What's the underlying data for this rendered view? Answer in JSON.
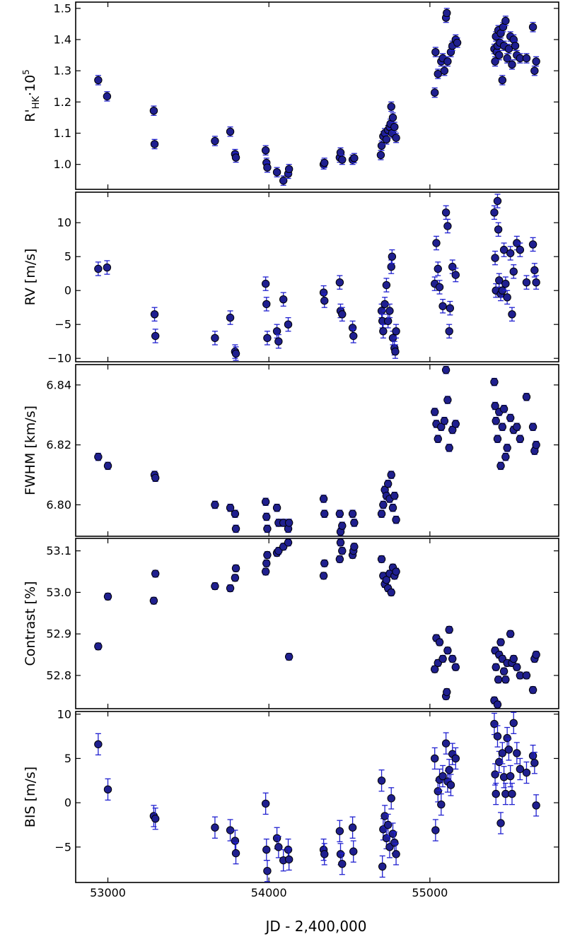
{
  "chart_data": {
    "type": "scatter",
    "layout": "vertically stacked panels sharing the x axis",
    "xlabel": "JD - 2,400,000",
    "xlim": [
      52800,
      55800
    ],
    "xticks": [
      53000,
      54000,
      55000
    ],
    "xtick_labels": [
      "53000",
      "54000",
      "55000"
    ],
    "marker_color": "#1f1f8f",
    "errorbar_color": "#2020d0",
    "grid": false,
    "legend": "none",
    "panels": [
      {
        "id": "rhk",
        "ylabel_main": "R'",
        "ylabel_sub": "HK",
        "ylabel_mid": "·10",
        "ylabel_sup": "5",
        "ylim": [
          0.92,
          1.52
        ],
        "yticks": [
          "1.0",
          "1.1",
          "1.2",
          "1.3",
          "1.4",
          "1.5"
        ],
        "err": 0.015,
        "x": [
          52940,
          52995,
          53285,
          53290,
          53665,
          53760,
          53790,
          53795,
          53980,
          53985,
          53990,
          54050,
          54090,
          54120,
          54125,
          54340,
          54345,
          54440,
          54445,
          54455,
          54520,
          54530,
          54695,
          54700,
          54710,
          54720,
          54730,
          54740,
          54750,
          54755,
          54760,
          54765,
          54770,
          54780,
          54790,
          55030,
          55035,
          55050,
          55070,
          55080,
          55090,
          55100,
          55105,
          55110,
          55130,
          55140,
          55160,
          55170,
          55400,
          55405,
          55410,
          55415,
          55420,
          55425,
          55430,
          55435,
          55440,
          55450,
          55455,
          55460,
          55470,
          55480,
          55490,
          55500,
          55510,
          55520,
          55530,
          55540,
          55560,
          55600,
          55640,
          55650,
          55660
        ],
        "y": [
          1.27,
          1.218,
          1.172,
          1.065,
          1.075,
          1.105,
          1.033,
          1.022,
          1.045,
          1.005,
          0.99,
          0.975,
          0.948,
          0.97,
          0.985,
          1.0,
          1.005,
          1.022,
          1.038,
          1.015,
          1.015,
          1.02,
          1.03,
          1.06,
          1.09,
          1.1,
          1.08,
          1.11,
          1.12,
          1.13,
          1.185,
          1.1,
          1.15,
          1.12,
          1.085,
          1.23,
          1.36,
          1.29,
          1.33,
          1.34,
          1.3,
          1.47,
          1.485,
          1.33,
          1.36,
          1.38,
          1.4,
          1.39,
          1.37,
          1.33,
          1.41,
          1.36,
          1.38,
          1.43,
          1.35,
          1.39,
          1.42,
          1.27,
          1.44,
          1.38,
          1.46,
          1.34,
          1.37,
          1.41,
          1.32,
          1.4,
          1.38,
          1.35,
          1.34,
          1.34,
          1.44,
          1.3,
          1.33
        ]
      },
      {
        "id": "rv",
        "ylabel": "RV [m/s]",
        "ylim": [
          -10.5,
          14.5
        ],
        "yticks": [
          "−10",
          "−5",
          "0",
          "5",
          "10"
        ],
        "ytick_values": [
          -10,
          -5,
          0,
          5,
          10
        ],
        "err": 1.0,
        "x": [
          52940,
          52995,
          53290,
          53295,
          53665,
          53760,
          53790,
          53795,
          53980,
          53985,
          53990,
          54050,
          54060,
          54090,
          54120,
          54340,
          54345,
          54440,
          54445,
          54455,
          54520,
          54525,
          54700,
          54705,
          54710,
          54720,
          54730,
          54740,
          54750,
          54760,
          54765,
          54770,
          54780,
          54785,
          54790,
          55030,
          55040,
          55050,
          55060,
          55080,
          55100,
          55110,
          55120,
          55125,
          55140,
          55160,
          55400,
          55405,
          55410,
          55420,
          55425,
          55430,
          55440,
          55450,
          55460,
          55470,
          55480,
          55500,
          55510,
          55520,
          55540,
          55560,
          55600,
          55640,
          55650,
          55660
        ],
        "y": [
          3.2,
          3.4,
          -3.5,
          -6.7,
          -7.0,
          -4.0,
          -9.0,
          -9.3,
          1.0,
          -2.0,
          -7.0,
          -6.0,
          -7.5,
          -1.3,
          -5.0,
          -0.3,
          -1.5,
          1.2,
          -3.0,
          -3.5,
          -5.5,
          -6.7,
          -3.0,
          -4.5,
          -6.0,
          -2.0,
          0.8,
          -4.5,
          -3.0,
          3.5,
          5.0,
          -7.0,
          -8.5,
          -9.0,
          -6.0,
          1.0,
          7.0,
          3.2,
          0.5,
          -2.3,
          11.5,
          9.5,
          -6.0,
          -2.6,
          3.5,
          2.3,
          11.5,
          4.8,
          0.0,
          13.2,
          9.0,
          1.5,
          -0.5,
          0.0,
          6.0,
          1.0,
          -1.0,
          5.5,
          -3.5,
          2.8,
          7.0,
          6.0,
          1.2,
          6.8,
          3.0,
          1.2
        ]
      },
      {
        "id": "fwhm",
        "ylabel": "FWHM [km/s]",
        "ylim": [
          6.7895,
          6.8468
        ],
        "yticks": [
          "6.80",
          "6.82",
          "6.84"
        ],
        "ytick_values": [
          6.8,
          6.82,
          6.84
        ],
        "err": 0.0012,
        "x": [
          52940,
          53000,
          53290,
          53295,
          53665,
          53760,
          53790,
          53795,
          53980,
          53985,
          53990,
          54050,
          54060,
          54090,
          54120,
          54125,
          54340,
          54345,
          54440,
          54445,
          54455,
          54520,
          54530,
          54700,
          54710,
          54720,
          54730,
          54740,
          54750,
          54760,
          54770,
          54780,
          54790,
          55030,
          55040,
          55050,
          55070,
          55090,
          55100,
          55110,
          55120,
          55140,
          55160,
          55400,
          55405,
          55410,
          55420,
          55430,
          55440,
          55450,
          55460,
          55470,
          55480,
          55500,
          55520,
          55540,
          55560,
          55600,
          55640,
          55650,
          55660
        ],
        "y": [
          6.816,
          6.813,
          6.81,
          6.809,
          6.8,
          6.799,
          6.797,
          6.792,
          6.801,
          6.796,
          6.792,
          6.799,
          6.794,
          6.794,
          6.792,
          6.794,
          6.802,
          6.797,
          6.797,
          6.791,
          6.793,
          6.797,
          6.794,
          6.797,
          6.8,
          6.805,
          6.803,
          6.807,
          6.802,
          6.81,
          6.799,
          6.803,
          6.795,
          6.831,
          6.827,
          6.822,
          6.826,
          6.828,
          6.845,
          6.835,
          6.819,
          6.825,
          6.827,
          6.841,
          6.833,
          6.828,
          6.822,
          6.831,
          6.813,
          6.826,
          6.832,
          6.816,
          6.819,
          6.829,
          6.825,
          6.826,
          6.822,
          6.836,
          6.826,
          6.818,
          6.82
        ]
      },
      {
        "id": "contrast",
        "ylabel": "Contrast [%]",
        "ylim": [
          52.72,
          53.13
        ],
        "yticks": [
          "52.8",
          "52.9",
          "53.0",
          "53.1"
        ],
        "ytick_values": [
          52.8,
          52.9,
          53.0,
          53.1
        ],
        "err": 0.008,
        "x": [
          52940,
          53000,
          53285,
          53295,
          53665,
          53760,
          53790,
          53795,
          53980,
          53985,
          53990,
          54050,
          54060,
          54090,
          54120,
          54125,
          54340,
          54345,
          54440,
          54445,
          54455,
          54520,
          54525,
          54530,
          54700,
          54710,
          54720,
          54730,
          54740,
          54750,
          54760,
          54770,
          54780,
          54790,
          55030,
          55040,
          55050,
          55060,
          55080,
          55100,
          55105,
          55110,
          55120,
          55140,
          55160,
          55400,
          55405,
          55410,
          55420,
          55425,
          55430,
          55440,
          55450,
          55460,
          55470,
          55480,
          55500,
          55510,
          55520,
          55540,
          55560,
          55600,
          55640,
          55650,
          55660
        ],
        "y": [
          52.87,
          52.99,
          52.98,
          53.045,
          53.015,
          53.01,
          53.035,
          53.058,
          53.05,
          53.07,
          53.09,
          53.095,
          53.1,
          53.11,
          53.12,
          52.845,
          53.04,
          53.07,
          53.08,
          53.12,
          53.1,
          53.09,
          53.1,
          53.11,
          53.08,
          53.04,
          53.02,
          53.03,
          53.01,
          53.045,
          53.0,
          53.06,
          53.04,
          53.05,
          52.815,
          52.89,
          52.83,
          52.88,
          52.84,
          52.75,
          52.76,
          52.86,
          52.91,
          52.84,
          52.82,
          52.74,
          52.86,
          52.82,
          52.73,
          52.79,
          52.85,
          52.88,
          52.84,
          52.81,
          52.79,
          52.83,
          52.9,
          52.83,
          52.84,
          52.82,
          52.8,
          52.8,
          52.765,
          52.84,
          52.85
        ]
      },
      {
        "id": "bis",
        "ylabel": "BIS [m/s]",
        "ylim": [
          -9.0,
          10.3
        ],
        "yticks": [
          "−5",
          "0",
          "5",
          "10"
        ],
        "ytick_values": [
          -5,
          0,
          5,
          10
        ],
        "err": 1.2,
        "x": [
          52940,
          53000,
          53285,
          53295,
          53665,
          53760,
          53790,
          53795,
          53980,
          53985,
          53990,
          54050,
          54060,
          54090,
          54120,
          54125,
          54340,
          54345,
          54440,
          54445,
          54455,
          54520,
          54525,
          54700,
          54705,
          54710,
          54720,
          54730,
          54740,
          54750,
          54760,
          54770,
          54780,
          54790,
          55030,
          55035,
          55050,
          55060,
          55070,
          55080,
          55100,
          55110,
          55120,
          55130,
          55140,
          55160,
          55400,
          55405,
          55410,
          55420,
          55430,
          55440,
          55450,
          55460,
          55470,
          55480,
          55490,
          55500,
          55510,
          55520,
          55540,
          55560,
          55600,
          55640,
          55650,
          55660
        ],
        "y": [
          6.6,
          1.5,
          -1.5,
          -1.8,
          -2.8,
          -3.1,
          -4.3,
          -5.7,
          -0.1,
          -5.3,
          -7.7,
          -4.0,
          -5.0,
          -6.5,
          -5.3,
          -6.4,
          -5.3,
          -5.8,
          -3.2,
          -5.8,
          -6.9,
          -2.8,
          -5.5,
          2.5,
          -7.2,
          -3.0,
          -1.5,
          -4.0,
          -2.5,
          -5.0,
          0.5,
          -3.5,
          -4.5,
          -5.8,
          5.0,
          -3.1,
          1.3,
          2.6,
          -0.2,
          3.0,
          6.7,
          2.4,
          3.7,
          2.0,
          5.5,
          5.0,
          8.9,
          3.2,
          1.0,
          7.5,
          4.6,
          -2.3,
          5.6,
          2.9,
          1.0,
          7.3,
          6.0,
          3.0,
          1.0,
          9.0,
          5.6,
          3.8,
          3.4,
          5.3,
          4.5,
          -0.3
        ]
      }
    ]
  }
}
